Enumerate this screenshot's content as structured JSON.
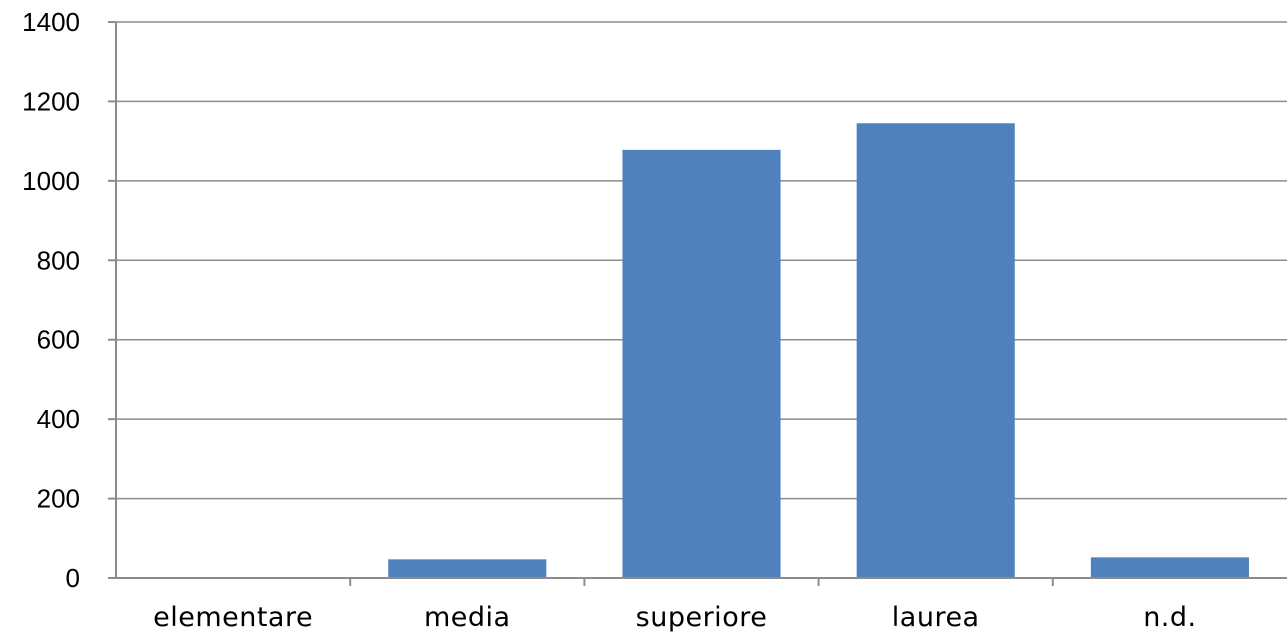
{
  "chart_data": {
    "type": "bar",
    "categories": [
      "elementare",
      "media",
      "superiore",
      "laurea",
      "n.d."
    ],
    "values": [
      0,
      47,
      1078,
      1145,
      52
    ],
    "ylim": [
      0,
      1400
    ],
    "yticks": [
      0,
      200,
      400,
      600,
      800,
      1000,
      1200,
      1400
    ],
    "grid": true,
    "legend": "none",
    "colors": {
      "bar": "#4f81bd",
      "grid": "#8c8c8c",
      "text": "#000000"
    }
  }
}
